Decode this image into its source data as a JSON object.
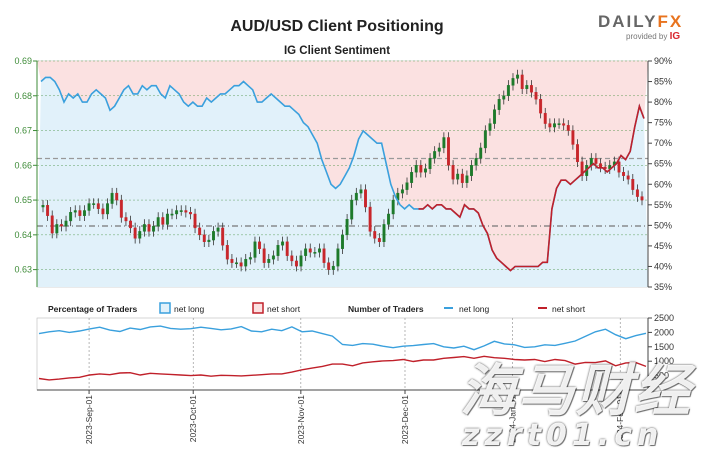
{
  "title": "AUD/USD Client Positioning",
  "subtitle": "IG Client Sentiment",
  "brand": {
    "name_a": "DAILY",
    "name_b": "FX",
    "provided_by": "provided by",
    "provider": "IG"
  },
  "watermark": {
    "line1": "海马财经",
    "line2": "zzrt01.cn"
  },
  "legend": {
    "pct_title": "Percentage of Traders",
    "num_title": "Number of Traders",
    "net_long": "net long",
    "net_short": "net short"
  },
  "colors": {
    "price_up": "#1d7a2a",
    "price_down": "#c8262b",
    "long_line": "#3aa0dd",
    "short_line": "#c0202a",
    "long_fill": "#e1f1fa",
    "short_fill": "#fbe1e1",
    "axis_green": "#3d8b37"
  },
  "chart_data": [
    {
      "type": "candlestick",
      "title": "IG Client Sentiment",
      "y_left": {
        "range": [
          0.625,
          0.69
        ],
        "ticks": [
          "0.63",
          "0.64",
          "0.65",
          "0.66",
          "0.67",
          "0.68",
          "0.69"
        ]
      },
      "y_right": {
        "range": [
          35,
          90
        ],
        "ticks": [
          "35%",
          "40%",
          "45%",
          "50%",
          "55%",
          "60%",
          "65%",
          "70%",
          "75%",
          "80%",
          "85%",
          "90%"
        ]
      },
      "x_dates": [
        "2023-08-17",
        "2024-02-09"
      ],
      "price_close": [
        0.6485,
        0.6455,
        0.6405,
        0.643,
        0.6425,
        0.644,
        0.6465,
        0.647,
        0.6455,
        0.647,
        0.649,
        0.649,
        0.6475,
        0.646,
        0.649,
        0.652,
        0.65,
        0.645,
        0.644,
        0.642,
        0.639,
        0.641,
        0.643,
        0.641,
        0.6425,
        0.645,
        0.643,
        0.646,
        0.646,
        0.647,
        0.647,
        0.6465,
        0.646,
        0.642,
        0.64,
        0.638,
        0.6385,
        0.641,
        0.642,
        0.637,
        0.633,
        0.632,
        0.632,
        0.631,
        0.633,
        0.6335,
        0.638,
        0.636,
        0.632,
        0.633,
        0.634,
        0.637,
        0.638,
        0.634,
        0.6325,
        0.631,
        0.634,
        0.636,
        0.635,
        0.635,
        0.636,
        0.632,
        0.63,
        0.631,
        0.636,
        0.64,
        0.6445,
        0.65,
        0.652,
        0.653,
        0.648,
        0.641,
        0.639,
        0.638,
        0.643,
        0.646,
        0.65,
        0.652,
        0.653,
        0.655,
        0.658,
        0.66,
        0.658,
        0.659,
        0.662,
        0.664,
        0.665,
        0.668,
        0.66,
        0.656,
        0.6575,
        0.655,
        0.657,
        0.66,
        0.662,
        0.665,
        0.67,
        0.672,
        0.676,
        0.679,
        0.68,
        0.683,
        0.685,
        0.686,
        0.682,
        0.683,
        0.681,
        0.679,
        0.675,
        0.672,
        0.671,
        0.672,
        0.672,
        0.6715,
        0.67,
        0.666,
        0.661,
        0.657,
        0.66,
        0.662,
        0.6605,
        0.6595,
        0.659,
        0.66,
        0.661,
        0.658,
        0.657,
        0.656,
        0.653,
        0.651,
        0.65
      ],
      "sentiment_long_pct": [
        85,
        86,
        86,
        85,
        83,
        80,
        82,
        81,
        82,
        80,
        80,
        82,
        83,
        82,
        81,
        78,
        79,
        81,
        83,
        84,
        82,
        82,
        84,
        83,
        84,
        84,
        82,
        81,
        84,
        83,
        82,
        80,
        79,
        80,
        79,
        79,
        81,
        80,
        81,
        82,
        82,
        83,
        84,
        84,
        85,
        84,
        83,
        80,
        80,
        81,
        82,
        81,
        80,
        79,
        79,
        78,
        77,
        75,
        74,
        72,
        70,
        66,
        63,
        60,
        59,
        60,
        62,
        64,
        67,
        71,
        73,
        72,
        71,
        70,
        70,
        65,
        60,
        57,
        55,
        54,
        55,
        54,
        54,
        54,
        55,
        54,
        55,
        55,
        54,
        54,
        53,
        52,
        55,
        54,
        54,
        53,
        50,
        48,
        44,
        42,
        41,
        40,
        39,
        40,
        40,
        40,
        40,
        40,
        40,
        41,
        41,
        54,
        59,
        61,
        61,
        60,
        61,
        62,
        63,
        64,
        65,
        64,
        64,
        63,
        64,
        65,
        67,
        66,
        68,
        74,
        79,
        76
      ],
      "short_line_start_index": 82
    },
    {
      "type": "line",
      "title": "Number of Traders",
      "y_ticks": [
        "500",
        "1000",
        "1500",
        "2000",
        "2500"
      ],
      "y_range": [
        0,
        2500
      ],
      "x_tick_labels": [
        "2023-Sep-01",
        "2023-Oct-01",
        "2023-Nov-01",
        "2023-Dec-01",
        "2024-Jan-01",
        "2024-Feb-01"
      ],
      "series": [
        {
          "name": "net long",
          "values": [
            1960,
            2020,
            2060,
            2000,
            2050,
            2120,
            2180,
            2080,
            2030,
            2150,
            2100,
            2190,
            2220,
            2140,
            2110,
            2130,
            2180,
            2140,
            2090,
            2120,
            2200,
            2050,
            2020,
            2110,
            2060,
            2190,
            2020,
            2050,
            1960,
            1870,
            1580,
            1550,
            1610,
            1590,
            1520,
            1470,
            1520,
            1540,
            1580,
            1610,
            1500,
            1460,
            1520,
            1400,
            1530,
            1690,
            1600,
            1570,
            1480,
            1500,
            1570,
            1550,
            1620,
            1700,
            1860,
            2020,
            2110,
            1920,
            1780,
            1890,
            1970
          ]
        },
        {
          "name": "net short",
          "values": [
            400,
            350,
            380,
            420,
            440,
            520,
            560,
            530,
            590,
            600,
            520,
            580,
            560,
            540,
            520,
            500,
            520,
            480,
            510,
            500,
            490,
            510,
            530,
            560,
            560,
            620,
            700,
            760,
            820,
            900,
            900,
            840,
            940,
            980,
            1010,
            1020,
            1060,
            990,
            1040,
            1040,
            1100,
            1130,
            1160,
            1100,
            1170,
            1120,
            1100,
            1060,
            1040,
            1060,
            990,
            1060,
            1020,
            900,
            960,
            950,
            1010,
            840,
            940,
            950,
            820
          ]
        }
      ]
    }
  ]
}
